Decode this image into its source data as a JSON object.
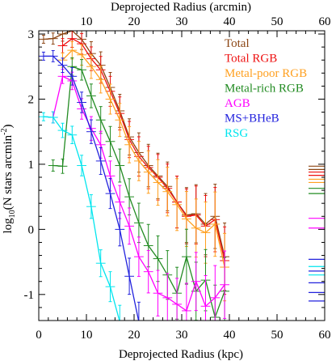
{
  "chart_data": {
    "type": "line",
    "xlabel": "Deprojected Radius (kpc)",
    "x2label": "Deprojected Radius (arcmin)",
    "ylabel_main": "log",
    "ylabel_sub": "10",
    "ylabel_rest": "(N stars arcmin",
    "ylabel_sup": "-2",
    "ylabel_close": ")",
    "xlim": [
      0,
      60
    ],
    "x2lim": [
      0,
      60
    ],
    "ylim": [
      -1.4,
      3.05
    ],
    "xticks": [
      0,
      10,
      20,
      30,
      40,
      50,
      60
    ],
    "xticklabels": [
      "0",
      "10",
      "20",
      "30",
      "40",
      "50",
      "60"
    ],
    "x2ticks": [
      10,
      20,
      30,
      40,
      50,
      60
    ],
    "x2ticklabels": [
      "10",
      "20",
      "30",
      "40",
      "50",
      "60"
    ],
    "yticks": [
      -1,
      0,
      1,
      2,
      3
    ],
    "yticklabels": [
      "-1",
      "0",
      "1",
      "2",
      "3"
    ],
    "legend_position": "top-right",
    "series": [
      {
        "name": "Total",
        "color": "#8b4513",
        "x": [
          1,
          3,
          5,
          7,
          9,
          11,
          13,
          15,
          17,
          19,
          21,
          23,
          25,
          27,
          29,
          31,
          33,
          35,
          37,
          39
        ],
        "y": [
          2.92,
          2.93,
          3.0,
          3.05,
          2.92,
          2.7,
          2.52,
          2.18,
          1.82,
          1.42,
          1.18,
          0.98,
          0.82,
          0.66,
          0.42,
          0.22,
          0.24,
          0.08,
          0.2,
          -0.42
        ]
      },
      {
        "name": "Total RGB",
        "color": "#ee1111",
        "x": [
          5,
          7,
          9,
          11,
          13,
          15,
          17,
          19,
          21,
          23,
          25,
          27,
          29,
          31,
          33,
          35,
          37,
          39
        ],
        "y": [
          2.82,
          2.93,
          2.85,
          2.62,
          2.45,
          2.12,
          1.78,
          1.38,
          1.12,
          0.95,
          0.8,
          0.63,
          0.42,
          0.2,
          0.22,
          0.05,
          0.15,
          -0.48
        ]
      },
      {
        "name": "Metal-poor RGB",
        "color": "#ffa020",
        "x": [
          5,
          7,
          9,
          11,
          13,
          15,
          17,
          19,
          21,
          23,
          25,
          27,
          29,
          31,
          33,
          35,
          37,
          39
        ],
        "y": [
          2.6,
          2.75,
          2.68,
          2.5,
          2.3,
          2.0,
          1.68,
          1.3,
          1.05,
          0.88,
          0.72,
          0.58,
          0.38,
          0.16,
          0.02,
          -0.05,
          0.08,
          -0.58
        ]
      },
      {
        "name": "Metal-rich RGB",
        "color": "#228b22",
        "x": [
          3,
          5,
          7,
          9,
          11,
          13,
          15,
          17,
          19,
          21,
          23,
          25,
          27,
          29,
          31,
          33,
          35,
          37,
          39
        ],
        "y": [
          0.98,
          0.97,
          2.5,
          2.45,
          2.05,
          1.68,
          1.35,
          0.98,
          0.5,
          0.1,
          -0.25,
          -0.45,
          -0.7,
          -0.98,
          -0.42,
          -0.95,
          -0.78,
          -1.35,
          -0.95
        ]
      },
      {
        "name": "AGB",
        "color": "#ff00ff",
        "x": [
          3,
          5,
          7,
          9,
          11,
          13,
          15,
          17,
          19,
          21,
          23,
          25,
          27,
          29,
          31,
          33,
          35,
          37,
          39
        ],
        "y": [
          1.72,
          2.35,
          2.28,
          1.85,
          1.55,
          1.3,
          0.82,
          0.42,
          0.05,
          -0.42,
          -0.65,
          -0.98,
          -1.05,
          -1.15,
          -1.25,
          -0.8,
          -1.18,
          -1.05,
          -0.85
        ]
      },
      {
        "name": "MS+BHeB",
        "color": "#2222dd",
        "x": [
          1,
          3,
          5,
          7,
          9,
          11,
          13,
          15,
          17,
          19,
          21
        ],
        "y": [
          2.66,
          2.66,
          2.52,
          2.35,
          1.95,
          1.5,
          1.05,
          0.55,
          0.0,
          -0.72,
          -1.42
        ]
      },
      {
        "name": "RSG",
        "color": "#00e5ee",
        "x": [
          1,
          3,
          5,
          7,
          9,
          11,
          13,
          15,
          17
        ],
        "y": [
          1.73,
          1.72,
          1.52,
          1.45,
          0.98,
          0.35,
          -0.52,
          -0.88,
          -1.42
        ]
      }
    ],
    "side_tick_groups": [
      {
        "color": "#8b4513",
        "values": [
          0.97,
          0.92
        ]
      },
      {
        "color": "#ee1111",
        "values": [
          0.88,
          0.83
        ]
      },
      {
        "color": "#ffa020",
        "values": [
          0.77,
          0.72
        ]
      },
      {
        "color": "#228b22",
        "values": [
          0.63,
          0.55
        ]
      },
      {
        "color": "#ff00ff",
        "values": [
          0.17,
          0.02
        ]
      },
      {
        "color": "#2222dd",
        "values": [
          -0.46,
          -0.64
        ]
      },
      {
        "color": "#00e5ee",
        "values": [
          -0.57,
          -0.7
        ]
      },
      {
        "color": "#2222dd",
        "values": [
          -0.82,
          -0.97,
          -1.1
        ]
      }
    ]
  }
}
